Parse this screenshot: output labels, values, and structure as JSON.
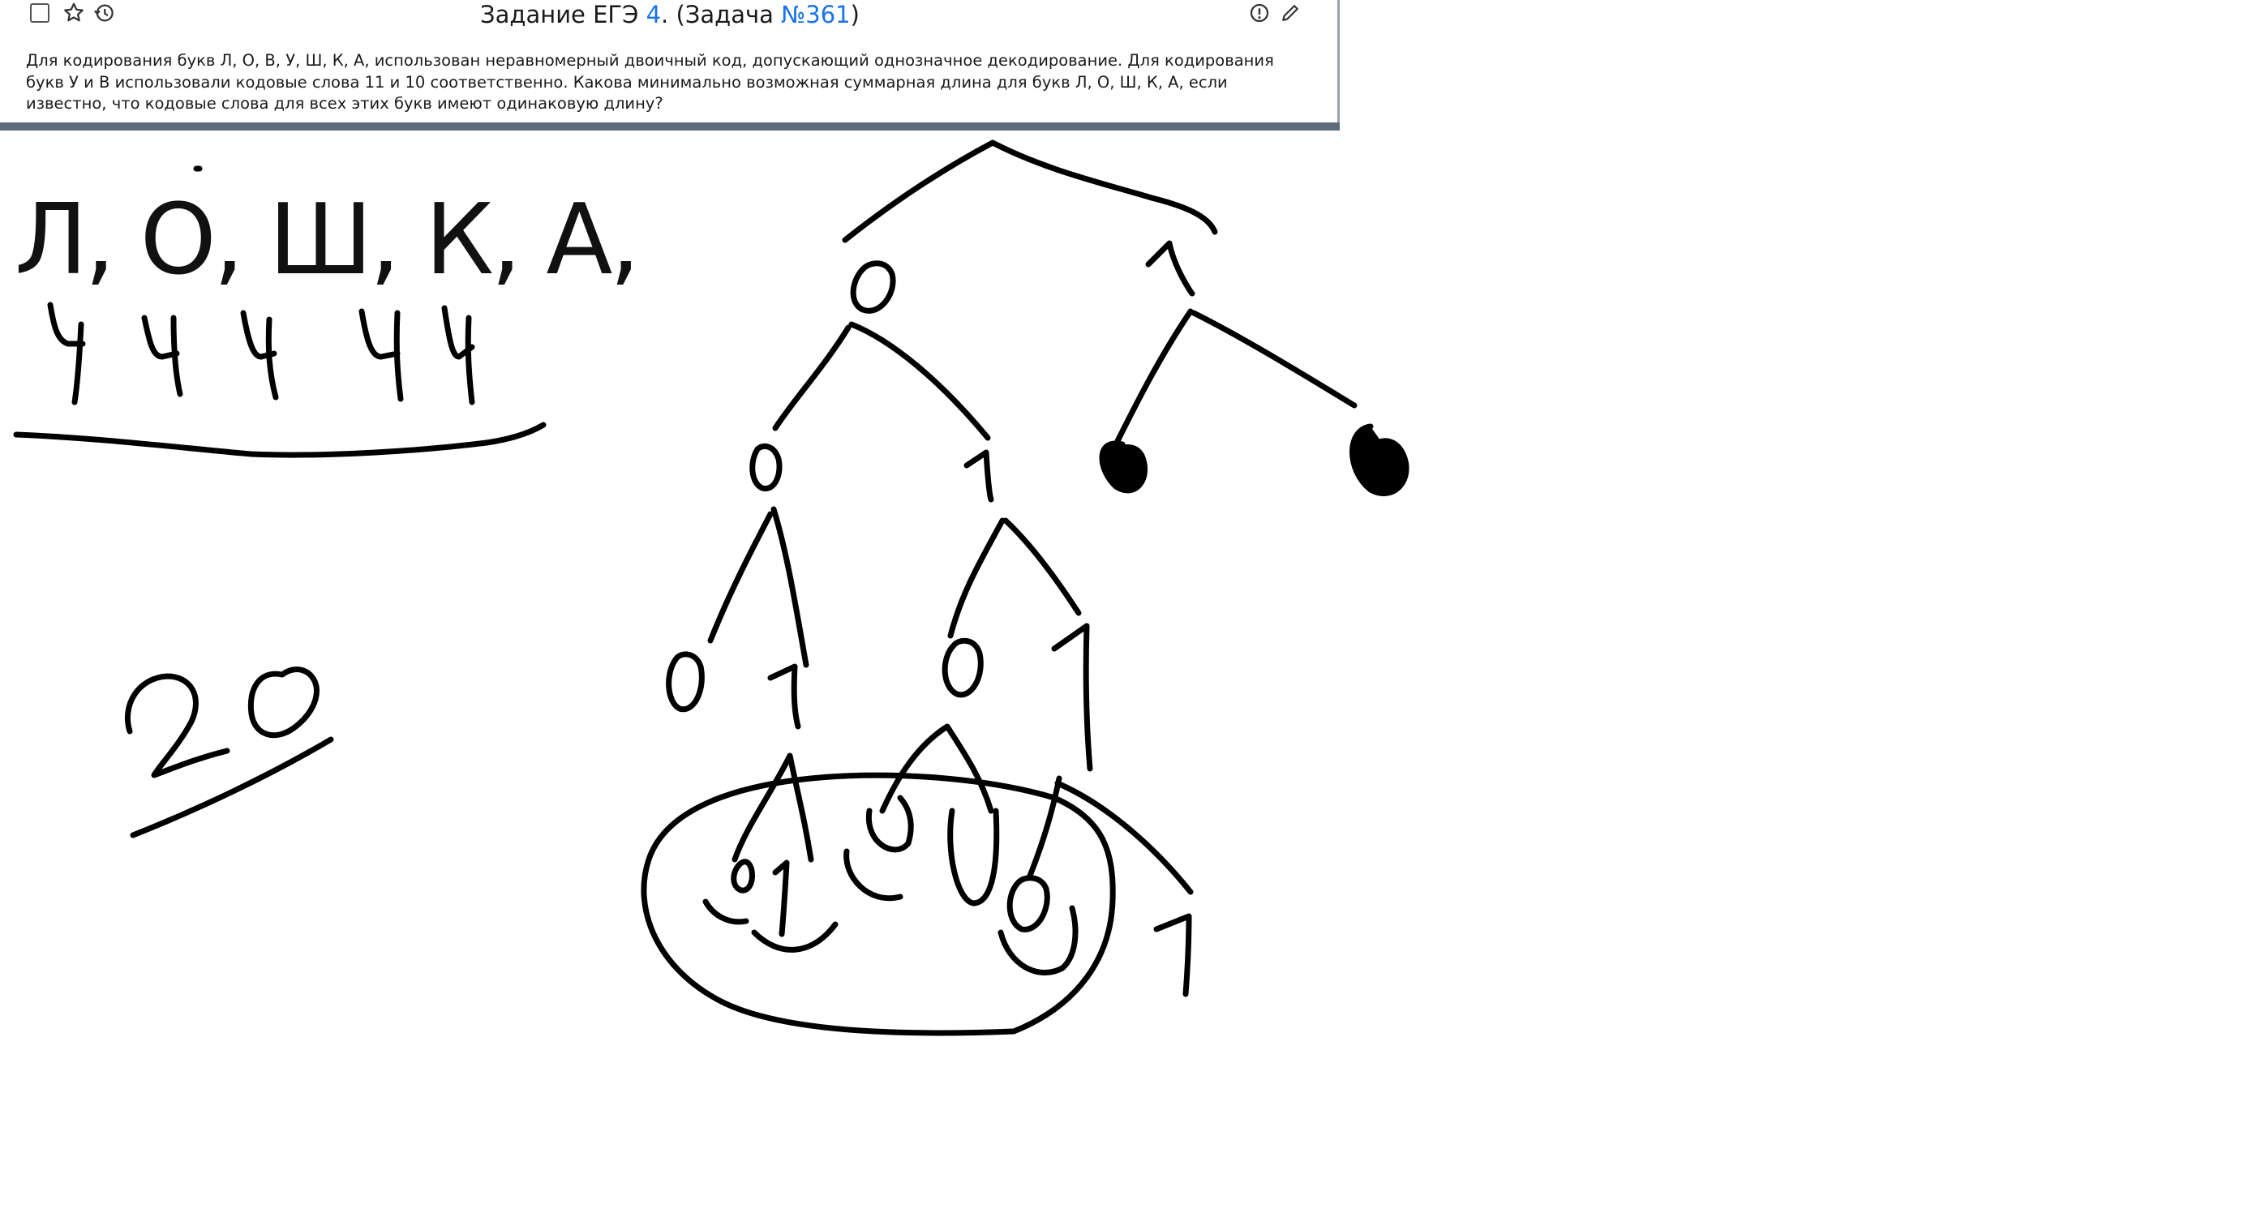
{
  "task": {
    "title_prefix": "Задание ЕГЭ ",
    "title_num": "4",
    "title_middle": ". (Задача ",
    "title_link": "№361",
    "title_suffix": ")",
    "text": "Для кодирования букв Л, О, В, У, Ш, К, А, использован неравномерный двоичный код, допускающий однозначное декодирование. Для кодирования букв У и В использовали кодовые слова 11 и 10 соответственно. Какова минимально возможная суммарная длина для букв Л, О, Ш, К, А, если известно, что кодовые слова для всех этих букв имеют одинаковую длину?"
  },
  "icons": {
    "checkbox": "checkbox-icon",
    "favorite": "star-icon",
    "history": "history-icon",
    "info": "info-icon",
    "edit": "pencil-icon"
  },
  "sketch": {
    "letters": "Л, О, Ш, К, А,",
    "lengths": [
      "4",
      "4",
      "4",
      "4",
      "4"
    ],
    "total": "20",
    "tree_labels": {
      "l1_left": "0",
      "l1_right": "1",
      "l2_a": "0",
      "l2_b": "1",
      "l3_a": "0",
      "l3_b": "1",
      "l3_c": "0",
      "l3_d": "1",
      "l4_a": "0",
      "l4_b": "1",
      "l4_c": "0",
      "l4_d": "0",
      "l4_e": "0",
      "l4_f": "1"
    }
  },
  "colors": {
    "link": "#1a73e8",
    "ink": "#000000",
    "bar": "#5f6b7a"
  }
}
